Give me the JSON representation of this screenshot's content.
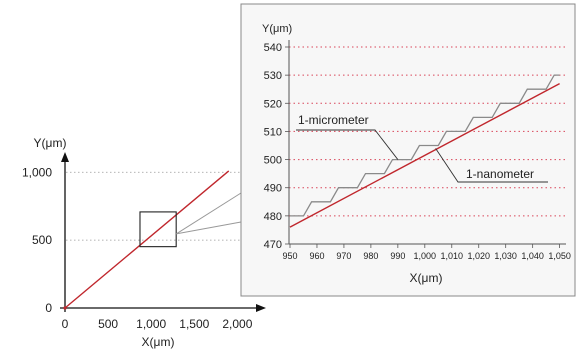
{
  "colors": {
    "trajectory": "#c0272d",
    "staircase": "#8a8a8a",
    "gridline": "#d9465a",
    "axis": "#111111",
    "panel_border": "#888888",
    "panel_bg": "#f7f7f7"
  },
  "chart_data": [
    {
      "type": "line",
      "title": "",
      "xlabel": "X(μm)",
      "ylabel": "Y(μm)",
      "xlim": [
        0,
        2100
      ],
      "ylim": [
        0,
        1120
      ],
      "xticks": [
        0,
        500,
        1000,
        1500,
        2000
      ],
      "xtick_labels": [
        "0",
        "500",
        "1,000",
        "1,500",
        "2,000"
      ],
      "yticks": [
        0,
        500,
        1000
      ],
      "ytick_labels": [
        "0",
        "500",
        "1,000"
      ],
      "grid": "dotted horizontal at 500 and 1,000",
      "series": [
        {
          "x": [
            0,
            1900
          ],
          "y": [
            0,
            1010
          ]
        }
      ],
      "zoom_box": {
        "x": [
          870,
          1290
        ],
        "y": [
          452,
          708
        ]
      }
    },
    {
      "type": "line",
      "title": "",
      "xlabel": "X(μm)",
      "ylabel": "Y(μm)",
      "xlim": [
        950,
        1052
      ],
      "ylim": [
        470,
        540
      ],
      "xticks": [
        950,
        960,
        970,
        980,
        990,
        1000,
        1010,
        1020,
        1030,
        1040,
        1050
      ],
      "xtick_labels": [
        "950",
        "960",
        "970",
        "980",
        "990",
        "1,000",
        "1,010",
        "1,020",
        "1,030",
        "1,040",
        "1,050"
      ],
      "yticks": [
        470,
        480,
        490,
        500,
        510,
        520,
        530,
        540
      ],
      "ytick_labels": [
        "470",
        "480",
        "490",
        "500",
        "510",
        "520",
        "530",
        "540"
      ],
      "grid": "dotted horizontal",
      "series": [
        {
          "x": [
            950,
            1050
          ],
          "y": [
            476,
            527
          ]
        },
        {
          "x": [
            950,
            955,
            958,
            965,
            968,
            975,
            978,
            985,
            988,
            995,
            998,
            1005,
            1008,
            1015,
            1018,
            1025,
            1028,
            1035,
            1038,
            1045,
            1048,
            1050
          ],
          "y": [
            480,
            480,
            485,
            485,
            490,
            490,
            495,
            495,
            500,
            500,
            505,
            505,
            510,
            510,
            515,
            515,
            520,
            520,
            525,
            525,
            530,
            530
          ]
        }
      ],
      "annotations": [
        {
          "text": "1-micrometer",
          "x": 990,
          "y": 500
        },
        {
          "text": "1-nanometer",
          "x": 1004,
          "y": 504
        }
      ]
    }
  ]
}
